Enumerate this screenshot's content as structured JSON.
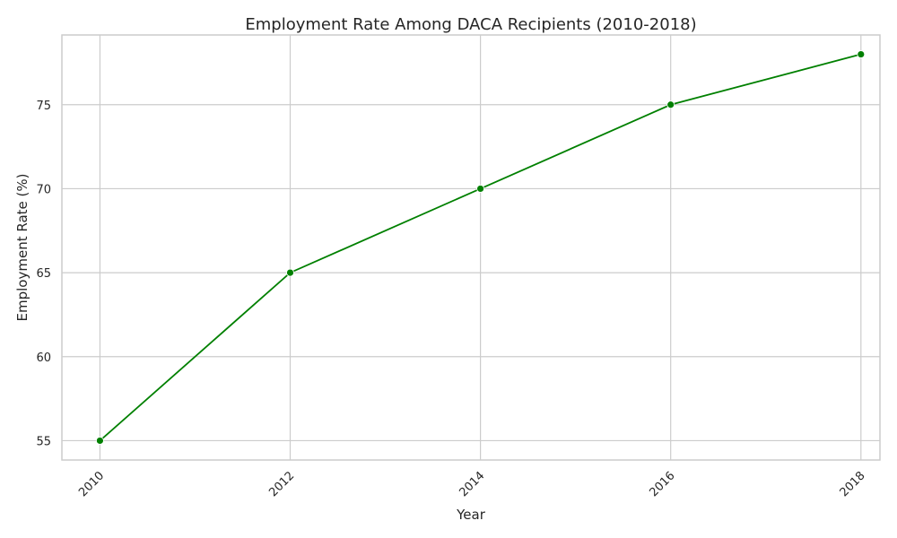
{
  "chart_data": {
    "type": "line",
    "title": "Employment Rate Among DACA Recipients (2010-2018)",
    "xlabel": "Year",
    "ylabel": "Employment Rate (%)",
    "x": [
      2010,
      2012,
      2014,
      2016,
      2018
    ],
    "series": [
      {
        "values": [
          55,
          65,
          70,
          75,
          78
        ],
        "color": "#008000"
      }
    ],
    "xticks": [
      2010,
      2012,
      2014,
      2016,
      2018
    ],
    "yticks": [
      55,
      60,
      65,
      70,
      75
    ],
    "xlim": [
      2009.6,
      2018.2
    ],
    "ylim": [
      53.85,
      79.15
    ],
    "grid": true,
    "marker": "circle"
  }
}
